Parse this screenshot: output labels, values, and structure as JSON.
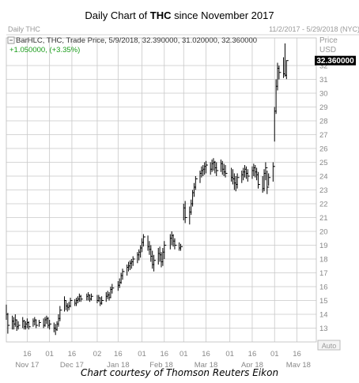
{
  "header": {
    "title_prefix": "Daily Chart of ",
    "title_bold": "THC",
    "title_suffix": " since November 2017"
  },
  "panel": {
    "chart_label": "Daily THC",
    "date_range": "11/2/2017 - 5/29/2018 (NYC)",
    "price_label": "Price",
    "currency": "USD",
    "legend_line": "BarHLC, THC, Trade Price, 5/9/2018, 32.390000, 31.020000, 32.360000",
    "change_line": "+1.050000, (+3.35%)",
    "last_price_tag": "32.360000",
    "auto_button": "Auto"
  },
  "footer": {
    "credit": "Chart courtesy of Thomson Reuters Eikon"
  },
  "colors": {
    "grid": "#c8c8c8",
    "bars": "#000000",
    "change": "#1a9c1a",
    "axis_text": "#888888",
    "last_tag_bg": "#000000",
    "last_tag_text": "#ffffff"
  },
  "chart_data": {
    "type": "bar",
    "style": "HLC",
    "title": "Daily Chart of THC since November 2017",
    "symbol": "THC",
    "ylim": [
      12,
      34
    ],
    "y_ticks": [
      13,
      14,
      15,
      16,
      17,
      18,
      19,
      20,
      21,
      22,
      23,
      24,
      25,
      26,
      27,
      28,
      29,
      30,
      31,
      32
    ],
    "x_day_ticks": [
      "16",
      "01",
      "16",
      "02",
      "16",
      "01",
      "16",
      "01",
      "16",
      "01",
      "16"
    ],
    "x_month_ticks": [
      "Nov 17",
      "Dec 17",
      "Jan 18",
      "Feb 18",
      "Mar 18",
      "Apr 18",
      "May 18"
    ],
    "grid": true,
    "bars": [
      {
        "date": "2017-11-02",
        "high": 14.7,
        "low": 13.6,
        "close": 14.0
      },
      {
        "date": "2017-11-03",
        "high": 14.1,
        "low": 12.6,
        "close": 13.2
      },
      {
        "date": "2017-11-06",
        "high": 13.9,
        "low": 12.9,
        "close": 13.5
      },
      {
        "date": "2017-11-07",
        "high": 13.8,
        "low": 12.9,
        "close": 13.3
      },
      {
        "date": "2017-11-08",
        "high": 14.0,
        "low": 13.1,
        "close": 13.6
      },
      {
        "date": "2017-11-09",
        "high": 13.6,
        "low": 12.8,
        "close": 13.1
      },
      {
        "date": "2017-11-10",
        "high": 13.5,
        "low": 12.9,
        "close": 13.2
      },
      {
        "date": "2017-11-13",
        "high": 13.8,
        "low": 13.0,
        "close": 13.5
      },
      {
        "date": "2017-11-14",
        "high": 13.6,
        "low": 12.9,
        "close": 13.1
      },
      {
        "date": "2017-11-15",
        "high": 13.5,
        "low": 12.9,
        "close": 13.3
      },
      {
        "date": "2017-11-16",
        "high": 13.7,
        "low": 13.0,
        "close": 13.4
      },
      {
        "date": "2017-11-17",
        "high": 13.5,
        "low": 12.9,
        "close": 13.1
      },
      {
        "date": "2017-11-20",
        "high": 13.7,
        "low": 13.1,
        "close": 13.5
      },
      {
        "date": "2017-11-21",
        "high": 13.8,
        "low": 13.2,
        "close": 13.6
      },
      {
        "date": "2017-11-22",
        "high": 13.6,
        "low": 13.0,
        "close": 13.2
      },
      {
        "date": "2017-11-24",
        "high": 13.6,
        "low": 13.1,
        "close": 13.4
      },
      {
        "date": "2017-11-27",
        "high": 13.7,
        "low": 13.0,
        "close": 13.2
      },
      {
        "date": "2017-11-28",
        "high": 13.8,
        "low": 13.1,
        "close": 13.6
      },
      {
        "date": "2017-11-29",
        "high": 13.9,
        "low": 13.3,
        "close": 13.7
      },
      {
        "date": "2017-11-30",
        "high": 13.8,
        "low": 13.0,
        "close": 13.2
      },
      {
        "date": "2017-12-01",
        "high": 13.6,
        "low": 12.9,
        "close": 13.3
      },
      {
        "date": "2017-12-04",
        "high": 13.4,
        "low": 12.7,
        "close": 13.0
      },
      {
        "date": "2017-12-05",
        "high": 13.3,
        "low": 12.5,
        "close": 12.9
      },
      {
        "date": "2017-12-06",
        "high": 13.5,
        "low": 12.8,
        "close": 13.3
      },
      {
        "date": "2017-12-07",
        "high": 14.0,
        "low": 13.1,
        "close": 13.7
      },
      {
        "date": "2017-12-08",
        "high": 14.6,
        "low": 13.5,
        "close": 14.3
      },
      {
        "date": "2017-12-11",
        "high": 15.3,
        "low": 14.2,
        "close": 15.0
      },
      {
        "date": "2017-12-12",
        "high": 15.0,
        "low": 14.3,
        "close": 14.6
      },
      {
        "date": "2017-12-13",
        "high": 14.8,
        "low": 14.2,
        "close": 14.5
      },
      {
        "date": "2017-12-14",
        "high": 14.9,
        "low": 14.3,
        "close": 14.6
      },
      {
        "date": "2017-12-15",
        "high": 15.2,
        "low": 14.5,
        "close": 15.0
      },
      {
        "date": "2017-12-18",
        "high": 15.1,
        "low": 14.6,
        "close": 14.8
      },
      {
        "date": "2017-12-19",
        "high": 15.2,
        "low": 14.6,
        "close": 15.0
      },
      {
        "date": "2017-12-20",
        "high": 15.3,
        "low": 14.8,
        "close": 15.1
      },
      {
        "date": "2017-12-21",
        "high": 15.5,
        "low": 14.9,
        "close": 15.3
      },
      {
        "date": "2017-12-22",
        "high": 15.4,
        "low": 14.9,
        "close": 15.1
      },
      {
        "date": "2017-12-26",
        "high": 15.5,
        "low": 15.0,
        "close": 15.3
      },
      {
        "date": "2017-12-27",
        "high": 15.6,
        "low": 15.0,
        "close": 15.4
      },
      {
        "date": "2017-12-28",
        "high": 15.4,
        "low": 14.9,
        "close": 15.1
      },
      {
        "date": "2017-12-29",
        "high": 15.5,
        "low": 15.0,
        "close": 15.3
      },
      {
        "date": "2018-01-02",
        "high": 15.4,
        "low": 14.8,
        "close": 15.0
      },
      {
        "date": "2018-01-03",
        "high": 15.4,
        "low": 14.9,
        "close": 15.2
      },
      {
        "date": "2018-01-04",
        "high": 15.2,
        "low": 14.6,
        "close": 14.8
      },
      {
        "date": "2018-01-05",
        "high": 15.3,
        "low": 14.7,
        "close": 15.0
      },
      {
        "date": "2018-01-08",
        "high": 15.6,
        "low": 14.9,
        "close": 15.3
      },
      {
        "date": "2018-01-09",
        "high": 15.7,
        "low": 15.1,
        "close": 15.4
      },
      {
        "date": "2018-01-10",
        "high": 15.6,
        "low": 15.0,
        "close": 15.2
      },
      {
        "date": "2018-01-11",
        "high": 16.0,
        "low": 15.2,
        "close": 15.8
      },
      {
        "date": "2018-01-12",
        "high": 16.2,
        "low": 15.5,
        "close": 15.9
      },
      {
        "date": "2018-01-16",
        "high": 16.4,
        "low": 15.7,
        "close": 16.1
      },
      {
        "date": "2018-01-17",
        "high": 16.6,
        "low": 15.9,
        "close": 16.3
      },
      {
        "date": "2018-01-18",
        "high": 17.0,
        "low": 16.2,
        "close": 16.8
      },
      {
        "date": "2018-01-19",
        "high": 17.3,
        "low": 16.5,
        "close": 17.1
      },
      {
        "date": "2018-01-22",
        "high": 17.6,
        "low": 16.8,
        "close": 17.4
      },
      {
        "date": "2018-01-23",
        "high": 17.8,
        "low": 17.1,
        "close": 17.5
      },
      {
        "date": "2018-01-24",
        "high": 17.9,
        "low": 17.2,
        "close": 17.7
      },
      {
        "date": "2018-01-25",
        "high": 18.0,
        "low": 17.3,
        "close": 17.8
      },
      {
        "date": "2018-01-26",
        "high": 18.2,
        "low": 17.5,
        "close": 18.0
      },
      {
        "date": "2018-01-29",
        "high": 18.5,
        "low": 17.7,
        "close": 18.3
      },
      {
        "date": "2018-01-30",
        "high": 18.7,
        "low": 17.9,
        "close": 18.5
      },
      {
        "date": "2018-01-31",
        "high": 19.0,
        "low": 18.1,
        "close": 18.8
      },
      {
        "date": "2018-02-01",
        "high": 19.5,
        "low": 18.5,
        "close": 19.2
      },
      {
        "date": "2018-02-02",
        "high": 19.8,
        "low": 18.9,
        "close": 19.6
      },
      {
        "date": "2018-02-05",
        "high": 19.7,
        "low": 18.6,
        "close": 18.9
      },
      {
        "date": "2018-02-06",
        "high": 19.3,
        "low": 18.3,
        "close": 18.7
      },
      {
        "date": "2018-02-07",
        "high": 19.0,
        "low": 17.8,
        "close": 18.2
      },
      {
        "date": "2018-02-08",
        "high": 18.6,
        "low": 17.3,
        "close": 17.6
      },
      {
        "date": "2018-02-09",
        "high": 18.3,
        "low": 17.1,
        "close": 17.9
      },
      {
        "date": "2018-02-12",
        "high": 18.8,
        "low": 17.6,
        "close": 18.4
      },
      {
        "date": "2018-02-13",
        "high": 18.9,
        "low": 17.8,
        "close": 18.3
      },
      {
        "date": "2018-02-14",
        "high": 18.5,
        "low": 17.4,
        "close": 17.8
      },
      {
        "date": "2018-02-15",
        "high": 18.8,
        "low": 17.5,
        "close": 18.5
      },
      {
        "date": "2018-02-16",
        "high": 19.3,
        "low": 18.0,
        "close": 19.0
      },
      {
        "date": "2018-02-20",
        "high": 19.8,
        "low": 18.7,
        "close": 19.5
      },
      {
        "date": "2018-02-21",
        "high": 20.0,
        "low": 19.0,
        "close": 19.7
      },
      {
        "date": "2018-02-22",
        "high": 19.8,
        "low": 18.9,
        "close": 19.3
      },
      {
        "date": "2018-02-23",
        "high": 19.5,
        "low": 18.7,
        "close": 19.0
      },
      {
        "date": "2018-02-26",
        "high": 19.2,
        "low": 18.6,
        "close": 18.8
      },
      {
        "date": "2018-02-27",
        "high": 19.1,
        "low": 18.6,
        "close": 18.9
      },
      {
        "date": "2018-03-01",
        "high": 22.0,
        "low": 20.8,
        "close": 21.7
      },
      {
        "date": "2018-03-02",
        "high": 22.2,
        "low": 20.6,
        "close": 21.0
      },
      {
        "date": "2018-03-05",
        "high": 21.8,
        "low": 20.5,
        "close": 21.4
      },
      {
        "date": "2018-03-06",
        "high": 22.3,
        "low": 21.2,
        "close": 22.0
      },
      {
        "date": "2018-03-07",
        "high": 23.0,
        "low": 21.8,
        "close": 22.8
      },
      {
        "date": "2018-03-08",
        "high": 23.5,
        "low": 22.5,
        "close": 23.2
      },
      {
        "date": "2018-03-09",
        "high": 24.0,
        "low": 23.0,
        "close": 23.8
      },
      {
        "date": "2018-03-12",
        "high": 24.4,
        "low": 23.5,
        "close": 24.2
      },
      {
        "date": "2018-03-13",
        "high": 24.7,
        "low": 23.9,
        "close": 24.4
      },
      {
        "date": "2018-03-14",
        "high": 24.8,
        "low": 24.0,
        "close": 24.5
      },
      {
        "date": "2018-03-15",
        "high": 25.0,
        "low": 24.1,
        "close": 24.7
      },
      {
        "date": "2018-03-16",
        "high": 25.1,
        "low": 24.2,
        "close": 24.8
      },
      {
        "date": "2018-03-19",
        "high": 25.0,
        "low": 24.1,
        "close": 24.5
      },
      {
        "date": "2018-03-20",
        "high": 25.2,
        "low": 24.3,
        "close": 24.9
      },
      {
        "date": "2018-03-21",
        "high": 25.3,
        "low": 24.4,
        "close": 25.0
      },
      {
        "date": "2018-03-22",
        "high": 25.1,
        "low": 24.2,
        "close": 24.6
      },
      {
        "date": "2018-03-23",
        "high": 25.0,
        "low": 24.0,
        "close": 24.4
      },
      {
        "date": "2018-03-26",
        "high": 25.2,
        "low": 24.3,
        "close": 24.9
      },
      {
        "date": "2018-03-27",
        "high": 25.1,
        "low": 24.1,
        "close": 24.5
      },
      {
        "date": "2018-03-28",
        "high": 24.9,
        "low": 24.0,
        "close": 24.3
      },
      {
        "date": "2018-03-29",
        "high": 24.8,
        "low": 23.9,
        "close": 24.2
      },
      {
        "date": "2018-04-02",
        "high": 24.6,
        "low": 23.6,
        "close": 23.9
      },
      {
        "date": "2018-04-03",
        "high": 24.5,
        "low": 23.4,
        "close": 23.8
      },
      {
        "date": "2018-04-04",
        "high": 24.2,
        "low": 23.0,
        "close": 23.5
      },
      {
        "date": "2018-04-05",
        "high": 24.0,
        "low": 22.9,
        "close": 23.4
      },
      {
        "date": "2018-04-06",
        "high": 24.2,
        "low": 23.1,
        "close": 23.9
      },
      {
        "date": "2018-04-09",
        "high": 24.4,
        "low": 23.5,
        "close": 24.1
      },
      {
        "date": "2018-04-10",
        "high": 24.6,
        "low": 23.7,
        "close": 24.3
      },
      {
        "date": "2018-04-11",
        "high": 24.8,
        "low": 23.9,
        "close": 24.5
      },
      {
        "date": "2018-04-12",
        "high": 24.7,
        "low": 23.8,
        "close": 24.2
      },
      {
        "date": "2018-04-13",
        "high": 24.5,
        "low": 23.6,
        "close": 24.0
      },
      {
        "date": "2018-04-16",
        "high": 24.7,
        "low": 23.8,
        "close": 24.4
      },
      {
        "date": "2018-04-17",
        "high": 24.9,
        "low": 24.0,
        "close": 24.6
      },
      {
        "date": "2018-04-18",
        "high": 24.8,
        "low": 23.9,
        "close": 24.3
      },
      {
        "date": "2018-04-19",
        "high": 24.6,
        "low": 23.7,
        "close": 24.1
      },
      {
        "date": "2018-04-20",
        "high": 24.3,
        "low": 23.1,
        "close": 23.4
      },
      {
        "date": "2018-04-23",
        "high": 24.0,
        "low": 22.8,
        "close": 23.1
      },
      {
        "date": "2018-04-24",
        "high": 24.5,
        "low": 22.9,
        "close": 24.2
      },
      {
        "date": "2018-04-25",
        "high": 25.0,
        "low": 23.7,
        "close": 24.6
      },
      {
        "date": "2018-04-26",
        "high": 24.4,
        "low": 22.7,
        "close": 23.2
      },
      {
        "date": "2018-04-27",
        "high": 24.2,
        "low": 23.3,
        "close": 23.9
      },
      {
        "date": "2018-04-30",
        "high": 25.0,
        "low": 23.6,
        "close": 24.7
      },
      {
        "date": "2018-05-01",
        "high": 29.0,
        "low": 26.5,
        "close": 28.7
      },
      {
        "date": "2018-05-02",
        "high": 31.0,
        "low": 28.5,
        "close": 30.5
      },
      {
        "date": "2018-05-03",
        "high": 32.2,
        "low": 30.2,
        "close": 31.8
      },
      {
        "date": "2018-05-04",
        "high": 32.0,
        "low": 31.0,
        "close": 31.5
      },
      {
        "date": "2018-05-07",
        "high": 32.6,
        "low": 31.1,
        "close": 31.4
      },
      {
        "date": "2018-05-08",
        "high": 33.6,
        "low": 31.2,
        "close": 31.3
      },
      {
        "date": "2018-05-09",
        "high": 32.39,
        "low": 31.02,
        "close": 32.36
      }
    ]
  }
}
